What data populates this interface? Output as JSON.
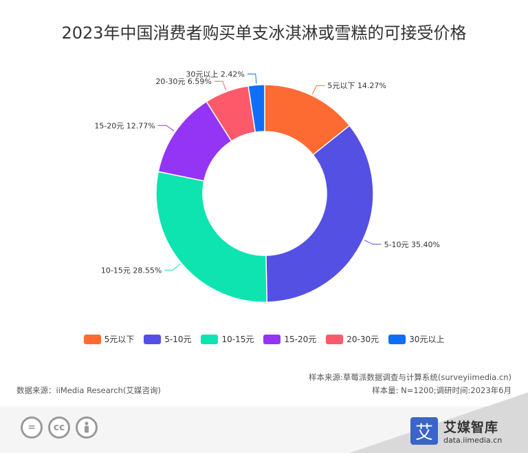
{
  "chart_data": {
    "type": "pie",
    "title": "2023年中国消费者购买单支冰淇淋或雪糕的可接受价格",
    "categories": [
      "5元以下",
      "5-10元",
      "10-15元",
      "15-20元",
      "20-30元",
      "30元以上"
    ],
    "values": [
      14.27,
      35.4,
      28.55,
      12.77,
      6.59,
      2.42
    ],
    "value_labels": [
      "14.27%",
      "35.40%",
      "28.55%",
      "12.77%",
      "6.59%",
      "2.42%"
    ],
    "colors": [
      "#fe6b32",
      "#5450e4",
      "#0de4b0",
      "#9434f4",
      "#fc5a6a",
      "#0f6ef8"
    ],
    "style": "donut",
    "start": "top, clockwise",
    "legend": "bottom"
  },
  "source": {
    "sample_source": "样本来源:草莓派数据调查与计算系统(surveyiimedia.cn)",
    "sample_size": "样本量: N=1200;调研时间:2023年6月",
    "data_source": "数据来源：iiMedia Research(艾媒咨询)"
  },
  "brand": {
    "logo_char": "艾",
    "name": "艾媒智库",
    "url": "data.iimedia.cn"
  },
  "license_icons": [
    "equal-icon",
    "cc-icon",
    "person-icon"
  ]
}
